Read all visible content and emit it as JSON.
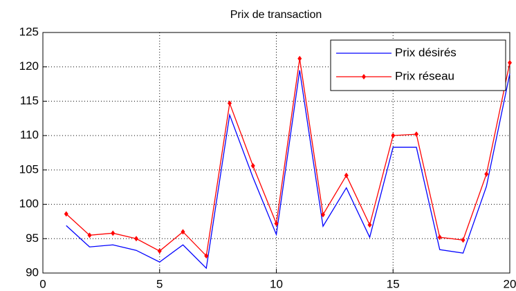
{
  "chart_data": {
    "type": "line",
    "title": "Prix de transaction",
    "x": [
      1,
      2,
      3,
      4,
      5,
      6,
      7,
      8,
      9,
      10,
      11,
      12,
      13,
      14,
      15,
      16,
      17,
      18,
      19,
      20
    ],
    "series": [
      {
        "name": "Prix désirés",
        "color": "#0000ff",
        "marker": false,
        "values": [
          96.9,
          93.8,
          94.1,
          93.3,
          91.6,
          94.1,
          90.7,
          113.0,
          103.9,
          95.6,
          119.5,
          96.8,
          102.4,
          95.2,
          108.3,
          108.3,
          93.4,
          92.9,
          102.6,
          119.0
        ]
      },
      {
        "name": "Prix réseau",
        "color": "#ff0000",
        "marker": true,
        "values": [
          98.6,
          95.5,
          95.8,
          95.0,
          93.2,
          96.0,
          92.5,
          114.7,
          105.6,
          97.2,
          121.2,
          98.5,
          104.2,
          97.0,
          110.0,
          110.2,
          95.2,
          94.8,
          104.4,
          120.6
        ]
      }
    ],
    "xlim": [
      0,
      20
    ],
    "xticks": [
      0,
      5,
      10,
      15,
      20
    ],
    "ylim": [
      90,
      125
    ],
    "yticks": [
      90,
      95,
      100,
      105,
      110,
      115,
      120,
      125
    ],
    "grid": true,
    "legend": "upper right"
  }
}
